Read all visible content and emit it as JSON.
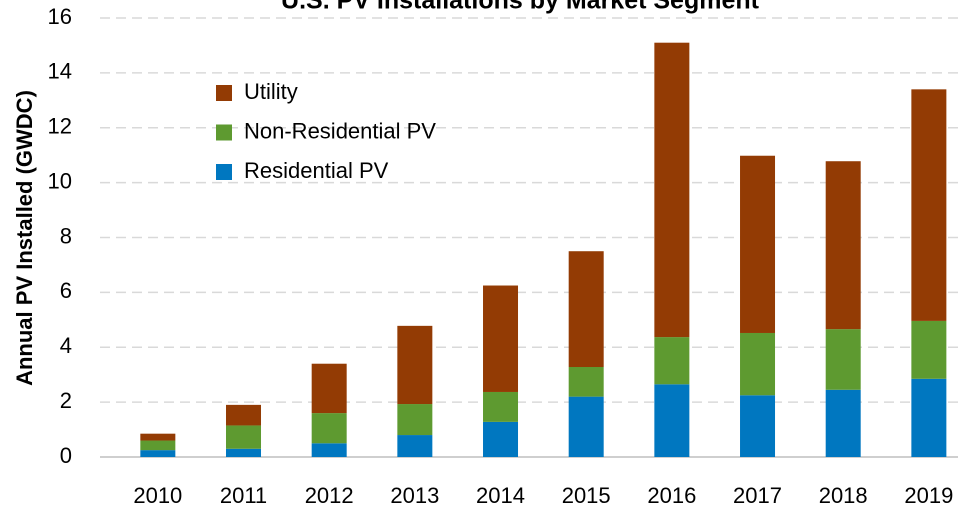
{
  "chart_data": {
    "type": "stacked_bar",
    "title": "U.S. PV Installations by Market Segment",
    "y_label": "Annual PV Installed (GWDC)",
    "categories": [
      "2010",
      "2011",
      "2012",
      "2013",
      "2014",
      "2015",
      "2016",
      "2017",
      "2018",
      "2019"
    ],
    "series": [
      {
        "name": "Residential PV",
        "color": "#0077c0",
        "values": [
          0.25,
          0.3,
          0.5,
          0.8,
          1.28,
          2.2,
          2.65,
          2.25,
          2.45,
          2.85
        ]
      },
      {
        "name": "Non-Residential PV",
        "color": "#5e9a30",
        "values": [
          0.35,
          0.85,
          1.1,
          1.13,
          1.09,
          1.08,
          1.72,
          2.27,
          2.21,
          2.11
        ]
      },
      {
        "name": "Utility",
        "color": "#933b04",
        "values": [
          0.25,
          0.75,
          1.8,
          2.85,
          3.88,
          4.22,
          10.73,
          6.46,
          6.12,
          8.44
        ]
      }
    ],
    "ylim": [
      0,
      16
    ],
    "yticks": [
      0,
      2,
      4,
      6,
      8,
      10,
      12,
      14,
      16
    ],
    "grid": true,
    "legend": "upper left"
  }
}
